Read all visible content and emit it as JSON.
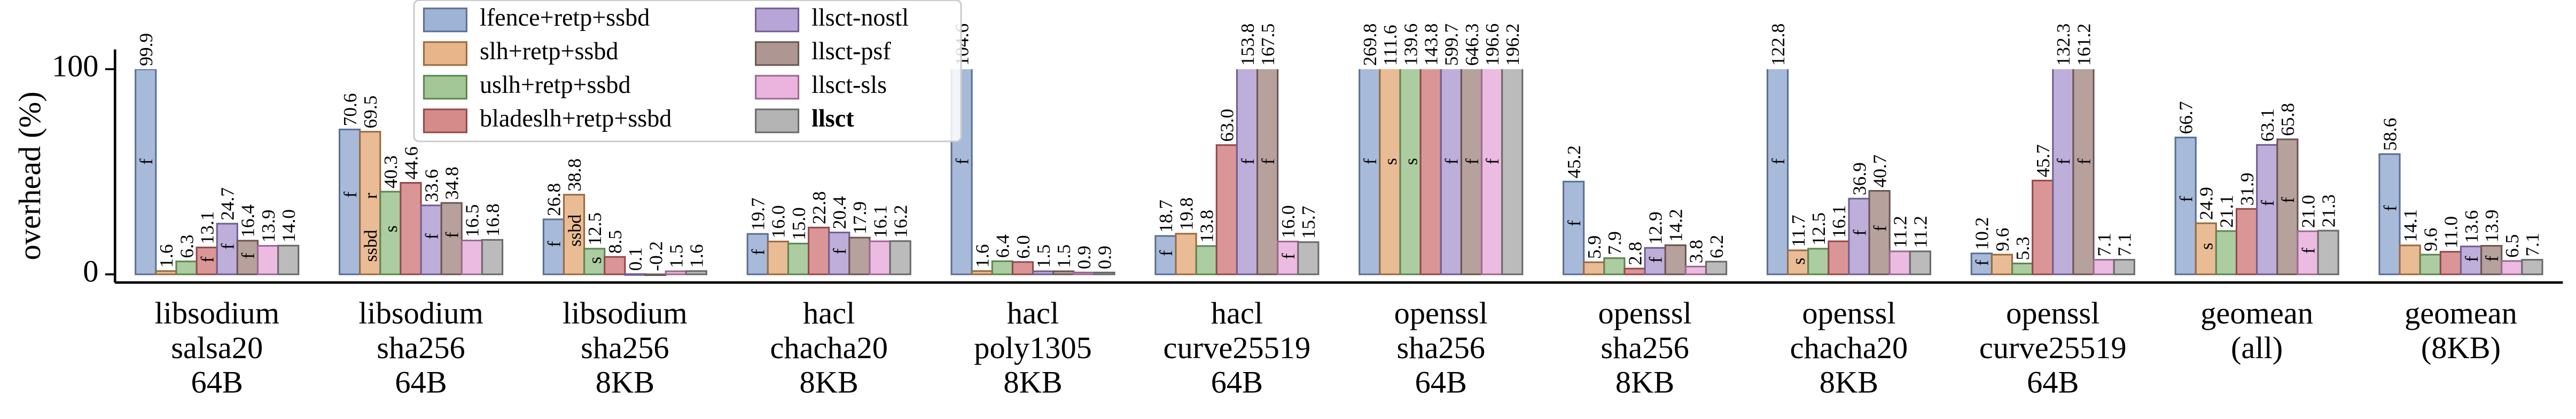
{
  "chart_data": {
    "type": "bar",
    "y_label": "overhead (%)",
    "ylim": [
      -4,
      100
    ],
    "yticks": [
      0,
      100
    ],
    "categories": [
      [
        "libsodium",
        "salsa20",
        "64B"
      ],
      [
        "libsodium",
        "sha256",
        "64B"
      ],
      [
        "libsodium",
        "sha256",
        "8KB"
      ],
      [
        "hacl",
        "chacha20",
        "8KB"
      ],
      [
        "hacl",
        "poly1305",
        "8KB"
      ],
      [
        "hacl",
        "curve25519",
        "64B"
      ],
      [
        "openssl",
        "sha256",
        "64B"
      ],
      [
        "openssl",
        "sha256",
        "8KB"
      ],
      [
        "openssl",
        "chacha20",
        "8KB"
      ],
      [
        "openssl",
        "curve25519",
        "64B"
      ],
      [
        "geomean",
        "(all)"
      ],
      [
        "geomean",
        "(8KB)"
      ]
    ],
    "legend": "upper center",
    "series": [
      {
        "name": "lfence+retp+ssbd",
        "color": "#9fb3d6",
        "edge": "#5a6f96",
        "values": [
          99.9,
          70.6,
          26.8,
          19.7,
          104.6,
          18.7,
          269.8,
          45.2,
          122.8,
          10.2,
          66.7,
          58.6
        ],
        "value_labels": [
          "99.9",
          "70.6",
          "26.8",
          "19.7",
          "104.6",
          "18.7",
          "269.8",
          "45.2",
          "122.8",
          "10.2",
          "66.7",
          "58.6"
        ]
      },
      {
        "name": "slh+retp+ssbd",
        "color": "#e8b58a",
        "edge": "#9a6a3e",
        "values": [
          1.6,
          69.5,
          38.8,
          16.0,
          1.6,
          19.8,
          111.6,
          5.9,
          11.7,
          9.6,
          24.9,
          14.1
        ],
        "value_labels": [
          "1.6",
          "69.5",
          "38.8",
          "16.0",
          "1.6",
          "19.8",
          "111.6",
          "5.9",
          "11.7",
          "9.6",
          "24.9",
          "14.1"
        ]
      },
      {
        "name": "uslh+retp+ssbd",
        "color": "#a3c797",
        "edge": "#5c8650",
        "values": [
          6.3,
          40.3,
          12.5,
          15.0,
          6.4,
          13.8,
          139.6,
          7.9,
          12.5,
          5.3,
          21.1,
          9.6
        ],
        "value_labels": [
          "6.3",
          "40.3",
          "12.5",
          "15.0",
          "6.4",
          "13.8",
          "139.6",
          "7.9",
          "12.5",
          "5.3",
          "21.1",
          "9.6"
        ]
      },
      {
        "name": "bladeslh+retp+ssbd",
        "color": "#d68b8b",
        "edge": "#94484a",
        "values": [
          13.1,
          44.6,
          8.5,
          22.8,
          6.0,
          63.0,
          143.8,
          2.8,
          16.1,
          45.7,
          31.9,
          11.0
        ],
        "value_labels": [
          "13.1",
          "44.6",
          "8.5",
          "22.8",
          "6.0",
          "63.0",
          "143.8",
          "2.8",
          "16.1",
          "45.7",
          "31.9",
          "11.0"
        ]
      },
      {
        "name": "llsct-nostl",
        "color": "#b6a5d6",
        "edge": "#6f5f94",
        "values": [
          24.7,
          33.6,
          0.1,
          20.4,
          1.5,
          153.8,
          599.7,
          12.9,
          36.9,
          132.3,
          63.1,
          13.6
        ],
        "value_labels": [
          "24.7",
          "33.6",
          "0.1",
          "20.4",
          "1.5",
          "153.8",
          "599.7",
          "12.9",
          "36.9",
          "132.3",
          "63.1",
          "13.6"
        ]
      },
      {
        "name": "llsct-psf",
        "color": "#ae9792",
        "edge": "#6c5652",
        "values": [
          16.4,
          34.8,
          -0.2,
          17.9,
          1.5,
          167.5,
          646.3,
          14.2,
          40.7,
          161.2,
          65.8,
          13.9
        ],
        "value_labels": [
          "16.4",
          "34.8",
          "-0.2",
          "17.9",
          "1.5",
          "167.5",
          "646.3",
          "14.2",
          "40.7",
          "161.2",
          "65.8",
          "13.9"
        ]
      },
      {
        "name": "llsct-sls",
        "color": "#eab4de",
        "edge": "#9a6a90",
        "values": [
          13.9,
          16.5,
          1.5,
          16.1,
          0.9,
          16.0,
          196.6,
          3.8,
          11.2,
          7.1,
          21.0,
          6.5
        ],
        "value_labels": [
          "13.9",
          "16.5",
          "1.5",
          "16.1",
          "0.9",
          "16.0",
          "196.6",
          "3.8",
          "11.2",
          "7.1",
          "21.0",
          "6.5"
        ]
      },
      {
        "name": "llsct",
        "color": "#b4b4b4",
        "edge": "#6a6a6a",
        "bold": true,
        "values": [
          14.0,
          16.8,
          1.6,
          16.2,
          0.9,
          15.7,
          196.2,
          6.2,
          11.2,
          7.1,
          21.3,
          7.1
        ],
        "value_labels": [
          "14.0",
          "16.8",
          "1.6",
          "16.2",
          "0.9",
          "15.7",
          "196.2",
          "6.2",
          "11.2",
          "7.1",
          "21.3",
          "7.1"
        ]
      }
    ],
    "annotations": [
      {
        "category": 0,
        "series": 0,
        "text": "f"
      },
      {
        "category": 0,
        "series": 3,
        "text": "f"
      },
      {
        "category": 0,
        "series": 4,
        "text": "f"
      },
      {
        "category": 0,
        "series": 5,
        "text": "f"
      },
      {
        "category": 1,
        "series": 0,
        "text": "f"
      },
      {
        "category": 1,
        "series": 1,
        "text": "r"
      },
      {
        "category": 1,
        "series": 1,
        "text": "ssbd"
      },
      {
        "category": 1,
        "series": 2,
        "text": "s"
      },
      {
        "category": 1,
        "series": 4,
        "text": "f"
      },
      {
        "category": 1,
        "series": 5,
        "text": "f"
      },
      {
        "category": 2,
        "series": 0,
        "text": "f"
      },
      {
        "category": 2,
        "series": 1,
        "text": "ssbd"
      },
      {
        "category": 2,
        "series": 2,
        "text": "s"
      },
      {
        "category": 3,
        "series": 0,
        "text": "f"
      },
      {
        "category": 3,
        "series": 4,
        "text": "f"
      },
      {
        "category": 4,
        "series": 0,
        "text": "f"
      },
      {
        "category": 5,
        "series": 0,
        "text": "f"
      },
      {
        "category": 5,
        "series": 4,
        "text": "f"
      },
      {
        "category": 5,
        "series": 5,
        "text": "f"
      },
      {
        "category": 5,
        "series": 6,
        "text": "f"
      },
      {
        "category": 6,
        "series": 0,
        "text": "f"
      },
      {
        "category": 6,
        "series": 1,
        "text": "s"
      },
      {
        "category": 6,
        "series": 2,
        "text": "s"
      },
      {
        "category": 6,
        "series": 4,
        "text": "f"
      },
      {
        "category": 6,
        "series": 5,
        "text": "f"
      },
      {
        "category": 6,
        "series": 6,
        "text": "f"
      },
      {
        "category": 7,
        "series": 0,
        "text": "f"
      },
      {
        "category": 7,
        "series": 4,
        "text": "f"
      },
      {
        "category": 8,
        "series": 0,
        "text": "f"
      },
      {
        "category": 8,
        "series": 1,
        "text": "s"
      },
      {
        "category": 8,
        "series": 4,
        "text": "f"
      },
      {
        "category": 8,
        "series": 5,
        "text": "f"
      },
      {
        "category": 9,
        "series": 0,
        "text": "f"
      },
      {
        "category": 9,
        "series": 4,
        "text": "f"
      },
      {
        "category": 9,
        "series": 5,
        "text": "f"
      },
      {
        "category": 10,
        "series": 0,
        "text": "f"
      },
      {
        "category": 10,
        "series": 1,
        "text": "s"
      },
      {
        "category": 10,
        "series": 4,
        "text": "f"
      },
      {
        "category": 10,
        "series": 5,
        "text": "f"
      },
      {
        "category": 10,
        "series": 6,
        "text": "f"
      },
      {
        "category": 11,
        "series": 0,
        "text": "f"
      },
      {
        "category": 11,
        "series": 4,
        "text": "f"
      },
      {
        "category": 11,
        "series": 5,
        "text": "f"
      }
    ]
  }
}
